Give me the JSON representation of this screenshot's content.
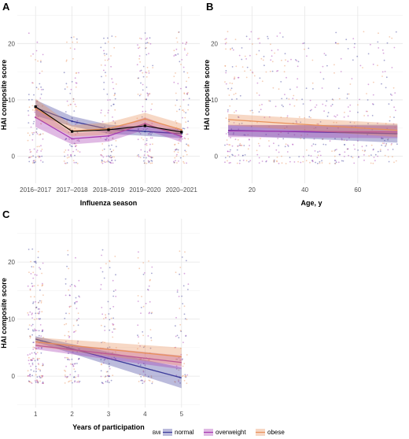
{
  "colors": {
    "normal": "#3b3b9a",
    "overweight": "#a63ab2",
    "obese": "#e8905a"
  },
  "legend": {
    "title": "BMI",
    "items": [
      {
        "key": "normal",
        "label": "normal"
      },
      {
        "key": "overweight",
        "label": "overweight"
      },
      {
        "key": "obese",
        "label": "obese"
      }
    ]
  },
  "chart_data": [
    {
      "panel": "A",
      "type": "line",
      "xlabel": "Influenza season",
      "ylabel": "HAI composite score",
      "categories": [
        "2016–2017",
        "2017–2018",
        "2018–2019",
        "2019–2020",
        "2020–2021"
      ],
      "ylim": [
        -4.8,
        26.6
      ],
      "yticks": [
        0,
        10,
        20
      ],
      "grid": true,
      "series": [
        {
          "name": "normal",
          "values": [
            8.6,
            6.2,
            4.8,
            4.4,
            4.0
          ],
          "lower": [
            7.2,
            5.3,
            4.0,
            3.6,
            3.2
          ],
          "upper": [
            10.0,
            7.1,
            5.6,
            5.2,
            4.8
          ]
        },
        {
          "name": "overweight",
          "values": [
            6.9,
            3.1,
            3.6,
            5.8,
            3.5
          ],
          "lower": [
            5.2,
            2.1,
            2.6,
            4.7,
            2.5
          ],
          "upper": [
            8.6,
            4.1,
            4.6,
            6.9,
            4.5
          ]
        },
        {
          "name": "obese",
          "values": [
            8.5,
            4.5,
            4.9,
            6.6,
            4.7
          ],
          "lower": [
            6.8,
            3.5,
            3.8,
            5.5,
            3.6
          ],
          "upper": [
            10.2,
            5.5,
            6.0,
            7.7,
            5.8
          ]
        },
        {
          "name": "",
          "values": [
            8.8,
            4.4,
            4.7,
            5.4,
            4.3
          ]
        }
      ]
    },
    {
      "panel": "B",
      "type": "scatter",
      "xlabel": "Age, y",
      "ylabel": "HAI composite score",
      "xlim": [
        8,
        77
      ],
      "xticks": [
        20,
        40,
        60
      ],
      "ylim": [
        -4.8,
        26.6
      ],
      "yticks": [
        0,
        10,
        20
      ],
      "grid": true,
      "series": [
        {
          "name": "normal",
          "x": [
            11,
            75
          ],
          "values": [
            4.6,
            4.0
          ],
          "band_halfwidth": [
            0.9,
            1.6
          ]
        },
        {
          "name": "overweight",
          "x": [
            11,
            75
          ],
          "values": [
            4.5,
            4.3
          ],
          "band_halfwidth": [
            1.1,
            1.1
          ]
        },
        {
          "name": "obese",
          "x": [
            11,
            75
          ],
          "values": [
            6.5,
            4.6
          ],
          "band_halfwidth": [
            1.0,
            1.2
          ]
        }
      ]
    },
    {
      "panel": "C",
      "type": "scatter",
      "xlabel": "Years of participation",
      "ylabel": "HAI composite score",
      "categories": [
        "1",
        "2",
        "3",
        "4",
        "5"
      ],
      "ylim": [
        -5.5,
        27.6
      ],
      "yticks": [
        0,
        10,
        20
      ],
      "grid": true,
      "series": [
        {
          "name": "normal",
          "x": [
            1,
            5
          ],
          "values": [
            6.5,
            -0.3
          ],
          "band_halfwidth": [
            0.5,
            1.8
          ]
        },
        {
          "name": "overweight",
          "x": [
            1,
            5
          ],
          "values": [
            5.4,
            2.4
          ],
          "band_halfwidth": [
            0.7,
            1.2
          ]
        },
        {
          "name": "obese",
          "x": [
            1,
            5
          ],
          "values": [
            6.0,
            3.4
          ],
          "band_halfwidth": [
            0.8,
            1.6
          ]
        }
      ]
    }
  ]
}
